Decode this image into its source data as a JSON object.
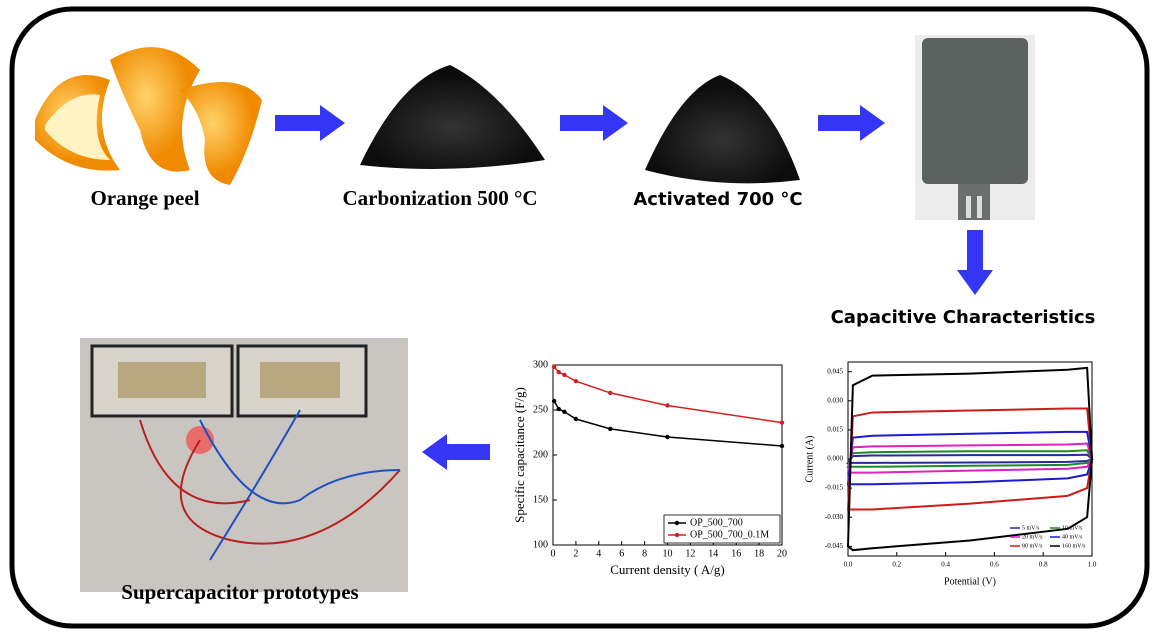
{
  "labels": [
    "Orange peel",
    "Carbonization 500 °C",
    "Activated 700 °C",
    "Capacitive Characteristics",
    "Supercapacitor prototypes"
  ],
  "chart_data": [
    {
      "type": "line",
      "xlabel": "Current density ( A/g)",
      "ylabel": "Specific capacitance (F/g)",
      "x": [
        0.1,
        0.5,
        1,
        2,
        5,
        10,
        20
      ],
      "series": [
        {
          "name": "OP_500_700",
          "color": "#000000",
          "values": [
            260,
            251,
            248,
            240,
            229,
            220,
            210
          ]
        },
        {
          "name": "OP_500_700_0.1M",
          "color": "#d62020",
          "values": [
            298,
            292,
            289,
            282,
            269,
            255,
            236
          ]
        }
      ],
      "xlim": [
        0,
        20
      ],
      "xticks": [
        0,
        2,
        4,
        6,
        8,
        10,
        12,
        14,
        16,
        18,
        20
      ],
      "ylim": [
        100,
        300
      ],
      "yticks": [
        100,
        150,
        200,
        250,
        300
      ],
      "legend": "lower right",
      "markers": true
    },
    {
      "type": "loop",
      "xlabel": "Potential (V)",
      "ylabel": "Current (A)",
      "x": [
        0,
        0.02,
        0.1,
        0.5,
        0.9,
        0.98,
        1.0,
        0.98,
        0.9,
        0.5,
        0.1,
        0.02,
        0
      ],
      "series": [
        {
          "name": "5 mV/s",
          "color": "#2a2a9a",
          "values": [
            -0.002,
            0.0015,
            0.0018,
            0.002,
            0.002,
            0.0022,
            0,
            -0.001,
            -0.0015,
            -0.0018,
            -0.002,
            -0.002,
            -0.002
          ]
        },
        {
          "name": "10 mV/s",
          "color": "#1a8a2a",
          "values": [
            -0.004,
            0.003,
            0.0035,
            0.004,
            0.004,
            0.0045,
            0,
            -0.002,
            -0.003,
            -0.0035,
            -0.004,
            -0.004,
            -0.004
          ]
        },
        {
          "name": "20 mV/s",
          "color": "#e020c0",
          "values": [
            -0.007,
            0.006,
            0.0065,
            0.007,
            0.0075,
            0.008,
            0,
            -0.004,
            -0.005,
            -0.006,
            -0.007,
            -0.007,
            -0.007
          ]
        },
        {
          "name": "40 mV/s",
          "color": "#1a1ad0",
          "values": [
            -0.013,
            0.011,
            0.012,
            0.013,
            0.014,
            0.014,
            0,
            -0.008,
            -0.01,
            -0.012,
            -0.013,
            -0.013,
            -0.013
          ]
        },
        {
          "name": "80 mV/s",
          "color": "#d01a1a",
          "values": [
            -0.026,
            0.022,
            0.024,
            0.025,
            0.026,
            0.026,
            0,
            -0.015,
            -0.019,
            -0.023,
            -0.026,
            -0.026,
            -0.026
          ]
        },
        {
          "name": "160 mV/s",
          "color": "#000000",
          "values": [
            -0.045,
            0.038,
            0.043,
            0.044,
            0.046,
            0.047,
            0,
            -0.03,
            -0.036,
            -0.042,
            -0.046,
            -0.047,
            -0.045
          ]
        }
      ],
      "xlim": [
        0,
        1
      ],
      "xticks": [
        {
          "value": 0,
          "label": "0.0"
        },
        0.2,
        0.4,
        0.6,
        0.8,
        {
          "value": 1,
          "label": "1.0"
        }
      ],
      "ylim": [
        -0.05,
        0.05
      ],
      "yticks": [
        {
          "value": -0.045,
          "label": "-0.045"
        },
        {
          "value": -0.03,
          "label": "-0.030"
        },
        {
          "value": -0.015,
          "label": "-0.015"
        },
        {
          "value": 0,
          "label": "0.000"
        },
        {
          "value": 0.015,
          "label": "0.015"
        },
        {
          "value": 0.03,
          "label": "0.030"
        },
        {
          "value": 0.045,
          "label": "0.045"
        }
      ],
      "legend": "lower right"
    }
  ]
}
